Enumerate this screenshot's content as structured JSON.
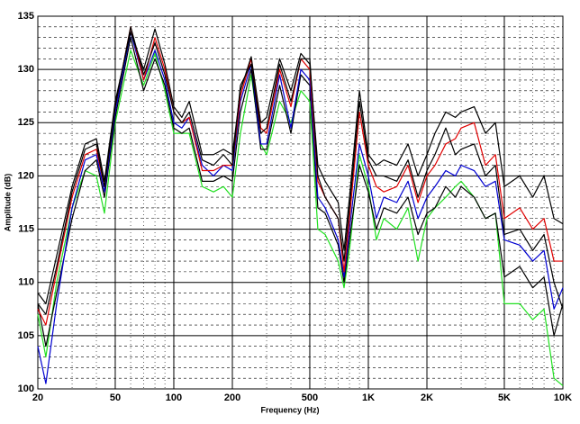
{
  "chart_data": {
    "type": "line",
    "x_label": "Frequency (Hz)",
    "y_label": "Amplitude (dB)",
    "xscale": "log",
    "grid": true,
    "xlim": [
      20,
      10000
    ],
    "ylim": [
      100,
      135
    ],
    "xticks": [
      20,
      50,
      100,
      200,
      500,
      {
        "value": 1000,
        "label": "1K"
      },
      {
        "value": 2000,
        "label": "2K"
      },
      {
        "value": 5000,
        "label": "5K"
      },
      {
        "value": 10000,
        "label": "10K"
      }
    ],
    "yticks": [
      100,
      105,
      110,
      115,
      120,
      125,
      130,
      135
    ],
    "x": [
      20,
      22,
      25,
      30,
      35,
      40,
      44,
      50,
      60,
      70,
      80,
      90,
      100,
      110,
      120,
      140,
      160,
      180,
      200,
      220,
      250,
      280,
      300,
      350,
      400,
      450,
      500,
      550,
      600,
      700,
      750,
      800,
      900,
      1000,
      1100,
      1200,
      1400,
      1600,
      1800,
      2000,
      2200,
      2500,
      2800,
      3000,
      3500,
      4000,
      4500,
      5000,
      6000,
      7000,
      8000,
      9000,
      10000
    ],
    "series": [
      {
        "color": "#20e020",
        "values": [
          107,
          103,
          110,
          117,
          120.5,
          120,
          116.5,
          125,
          131.8,
          128.5,
          131.5,
          128,
          124,
          124,
          124,
          119,
          118.5,
          119,
          118,
          124,
          129.5,
          123,
          122,
          127,
          125,
          128,
          127,
          115,
          114.5,
          112,
          109.5,
          113,
          122,
          119,
          114,
          116,
          115,
          117,
          112,
          116,
          117,
          118,
          119,
          119.5,
          118,
          116,
          116.5,
          108,
          108,
          106.5,
          107.5,
          101,
          100.3
        ]
      },
      {
        "color": "#000000",
        "values": [
          108,
          104,
          109,
          116,
          120.5,
          121.5,
          118,
          125.5,
          133,
          128,
          131,
          128.5,
          124.5,
          124,
          124.5,
          119.5,
          119.5,
          120,
          119.5,
          126,
          130,
          122.5,
          122.5,
          128.5,
          124,
          129.5,
          128.5,
          117,
          116.5,
          113.5,
          110,
          114,
          121,
          118.5,
          115,
          117,
          116.5,
          118,
          114.5,
          116.5,
          117,
          119,
          118,
          119,
          118,
          116,
          116.5,
          110.5,
          111.5,
          109.5,
          110.5,
          105,
          108
        ]
      },
      {
        "color": "#0000d0",
        "values": [
          104,
          100.5,
          108,
          117,
          121.5,
          122,
          118.5,
          126,
          133.5,
          129,
          131.8,
          129,
          125,
          124.5,
          125.5,
          121,
          120,
          121,
          120.5,
          127,
          130.5,
          123,
          123,
          129.5,
          124.5,
          130,
          129,
          118,
          117,
          114,
          110.5,
          115,
          123,
          120,
          116,
          118,
          117.5,
          119.5,
          116,
          118,
          119,
          120.5,
          120,
          121,
          120.5,
          119,
          119.5,
          114,
          113.5,
          112,
          113,
          107.5,
          109.5
        ]
      },
      {
        "color": "#e00000",
        "values": [
          107.5,
          106,
          111,
          118,
          122,
          122.5,
          119,
          126.5,
          134,
          129,
          133,
          130,
          126,
          125,
          125.5,
          120.5,
          120.5,
          121,
          121,
          127.5,
          131,
          124.5,
          124,
          130,
          126.5,
          131,
          130,
          119.5,
          118,
          116,
          111,
          116,
          126,
          121,
          119,
          118.5,
          119,
          121,
          117.5,
          120,
          121,
          123,
          123.5,
          124.5,
          125,
          121,
          122,
          116,
          117,
          115,
          116,
          112,
          112
        ]
      },
      {
        "color": "#000000",
        "values": [
          108,
          107,
          111.5,
          118.5,
          122.5,
          123,
          119,
          126.5,
          134,
          129.5,
          132.5,
          129.5,
          126,
          125,
          126,
          121.5,
          121,
          122,
          121,
          128.5,
          130.5,
          124,
          124.5,
          130.5,
          127,
          131,
          131,
          120,
          118,
          116,
          112,
          117,
          127,
          121.5,
          120,
          120,
          119.5,
          121.5,
          118,
          120.5,
          122,
          124.5,
          122,
          122.5,
          123,
          120,
          121,
          114.5,
          115,
          113,
          114.5,
          110,
          107.5
        ]
      },
      {
        "color": "#000000",
        "values": [
          109,
          108,
          112.5,
          119,
          123,
          123.5,
          119.5,
          127,
          133.5,
          130,
          133.8,
          130.5,
          126.5,
          125.5,
          127,
          122,
          122,
          122.5,
          122,
          128,
          131.2,
          125,
          125.5,
          131,
          128,
          131.5,
          130.5,
          121,
          119.5,
          117.5,
          113,
          118,
          128,
          122,
          121,
          121.5,
          121,
          123,
          120,
          122,
          124,
          126,
          125.5,
          126,
          126.5,
          124,
          125,
          119,
          120,
          118,
          120,
          116,
          115.5
        ]
      }
    ]
  }
}
